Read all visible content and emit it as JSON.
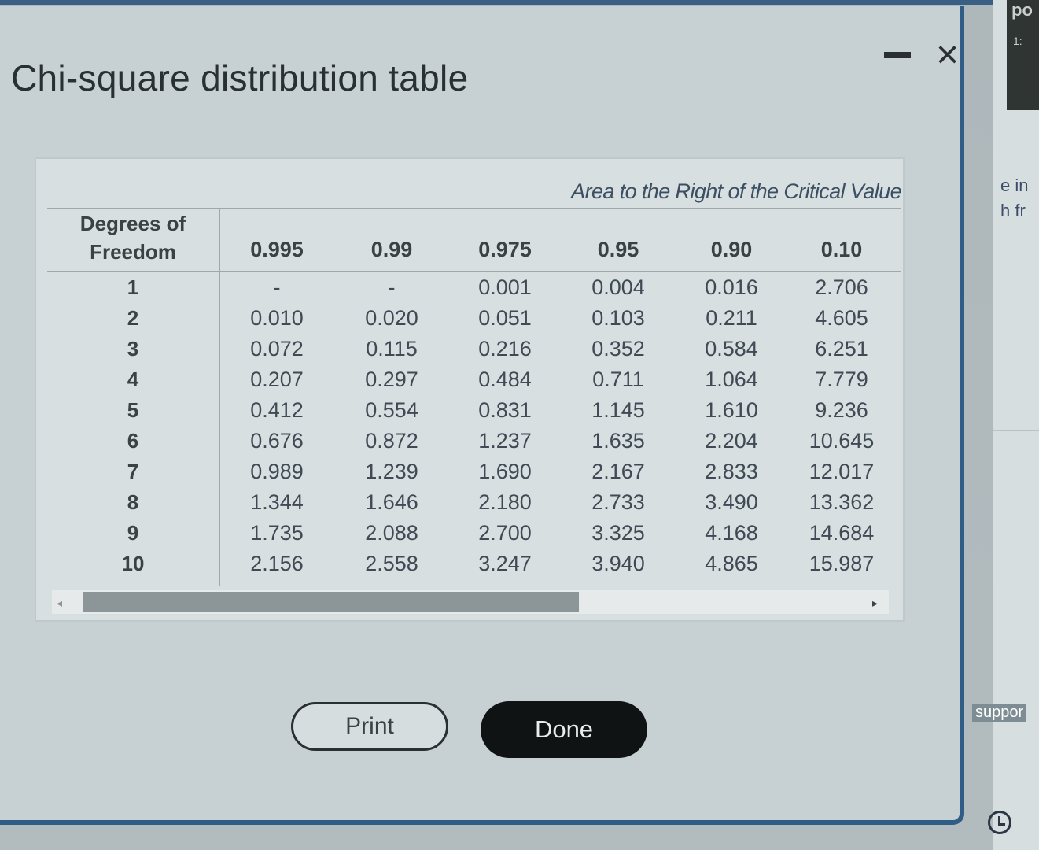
{
  "background": {
    "top_right_text_1": "po",
    "top_right_text_2": "1:",
    "side_text_line_1": "e in",
    "side_text_line_2": "h fr",
    "side_support_text": "suppor"
  },
  "dialog": {
    "title": "Chi-square distribution table",
    "minimize_label": "−",
    "close_label": "×"
  },
  "table": {
    "caption": "Area to the Right of the Critical Value",
    "dof_header_line1": "Degrees of",
    "dof_header_line2": "Freedom",
    "columns": [
      "0.995",
      "0.99",
      "0.975",
      "0.95",
      "0.90",
      "0.10"
    ],
    "rows": [
      {
        "dof": "1",
        "values": [
          "-",
          "-",
          "0.001",
          "0.004",
          "0.016",
          "2.706"
        ]
      },
      {
        "dof": "2",
        "values": [
          "0.010",
          "0.020",
          "0.051",
          "0.103",
          "0.211",
          "4.605"
        ]
      },
      {
        "dof": "3",
        "values": [
          "0.072",
          "0.115",
          "0.216",
          "0.352",
          "0.584",
          "6.251"
        ]
      },
      {
        "dof": "4",
        "values": [
          "0.207",
          "0.297",
          "0.484",
          "0.711",
          "1.064",
          "7.779"
        ]
      },
      {
        "dof": "5",
        "values": [
          "0.412",
          "0.554",
          "0.831",
          "1.145",
          "1.610",
          "9.236"
        ]
      },
      {
        "dof": "6",
        "values": [
          "0.676",
          "0.872",
          "1.237",
          "1.635",
          "2.204",
          "10.645"
        ]
      },
      {
        "dof": "7",
        "values": [
          "0.989",
          "1.239",
          "1.690",
          "2.167",
          "2.833",
          "12.017"
        ]
      },
      {
        "dof": "8",
        "values": [
          "1.344",
          "1.646",
          "2.180",
          "2.733",
          "3.490",
          "13.362"
        ]
      },
      {
        "dof": "9",
        "values": [
          "1.735",
          "2.088",
          "2.700",
          "3.325",
          "4.168",
          "14.684"
        ]
      },
      {
        "dof": "10",
        "values": [
          "2.156",
          "2.558",
          "3.247",
          "3.940",
          "4.865",
          "15.987"
        ]
      }
    ]
  },
  "scrollbar": {
    "left_arrow": "◂",
    "right_arrow": "▸",
    "thumb_fraction": 0.6
  },
  "buttons": {
    "print_label": "Print",
    "done_label": "Done"
  },
  "colors": {
    "title_bar_accent": "#2f5d86",
    "done_button_bg": "#101314"
  }
}
